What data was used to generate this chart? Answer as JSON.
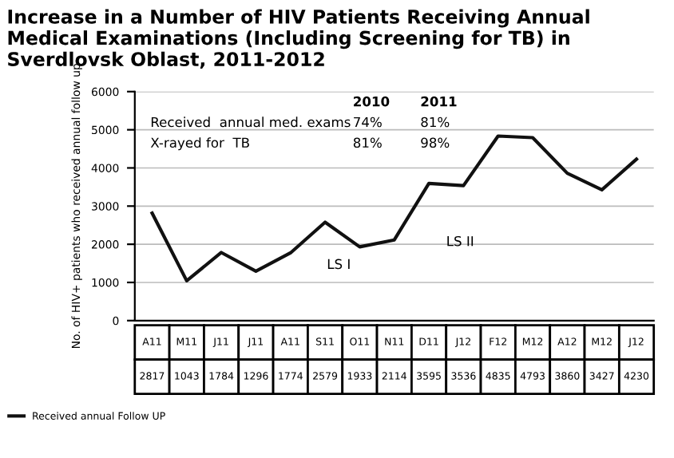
{
  "chart_data": {
    "type": "line",
    "title": "Increase in a Number of HIV Patients Receiving Annual Medical Examinations (Including Screening for TB) in Sverdlovsk Oblast, 2011-2012",
    "ylabel": "No. of HIV+ patients who received annual follow up",
    "categories": [
      "A11",
      "M11",
      "J11",
      "J11",
      "A11",
      "S11",
      "O11",
      "N11",
      "D11",
      "J12",
      "F12",
      "M12",
      "A12",
      "M12",
      "J12"
    ],
    "series": [
      {
        "name": "Received annual Follow UP",
        "color": "#111111",
        "values": [
          2817,
          1043,
          1784,
          1296,
          1774,
          2579,
          1933,
          2114,
          3595,
          3536,
          4835,
          4793,
          3860,
          3427,
          4230
        ]
      }
    ],
    "ylim": [
      0,
      6000
    ],
    "yticks": [
      0,
      1000,
      2000,
      3000,
      4000,
      5000,
      6000
    ],
    "grid": "y",
    "legend": "bottom left",
    "data_labels": true,
    "marker": "none",
    "line_style": "solid",
    "annotations": [
      "2010",
      "2011",
      "Received  annual med. exams",
      "74%",
      "81%",
      "X-rayed for  TB",
      "81%",
      "98%",
      "LS I",
      "LS II"
    ]
  }
}
